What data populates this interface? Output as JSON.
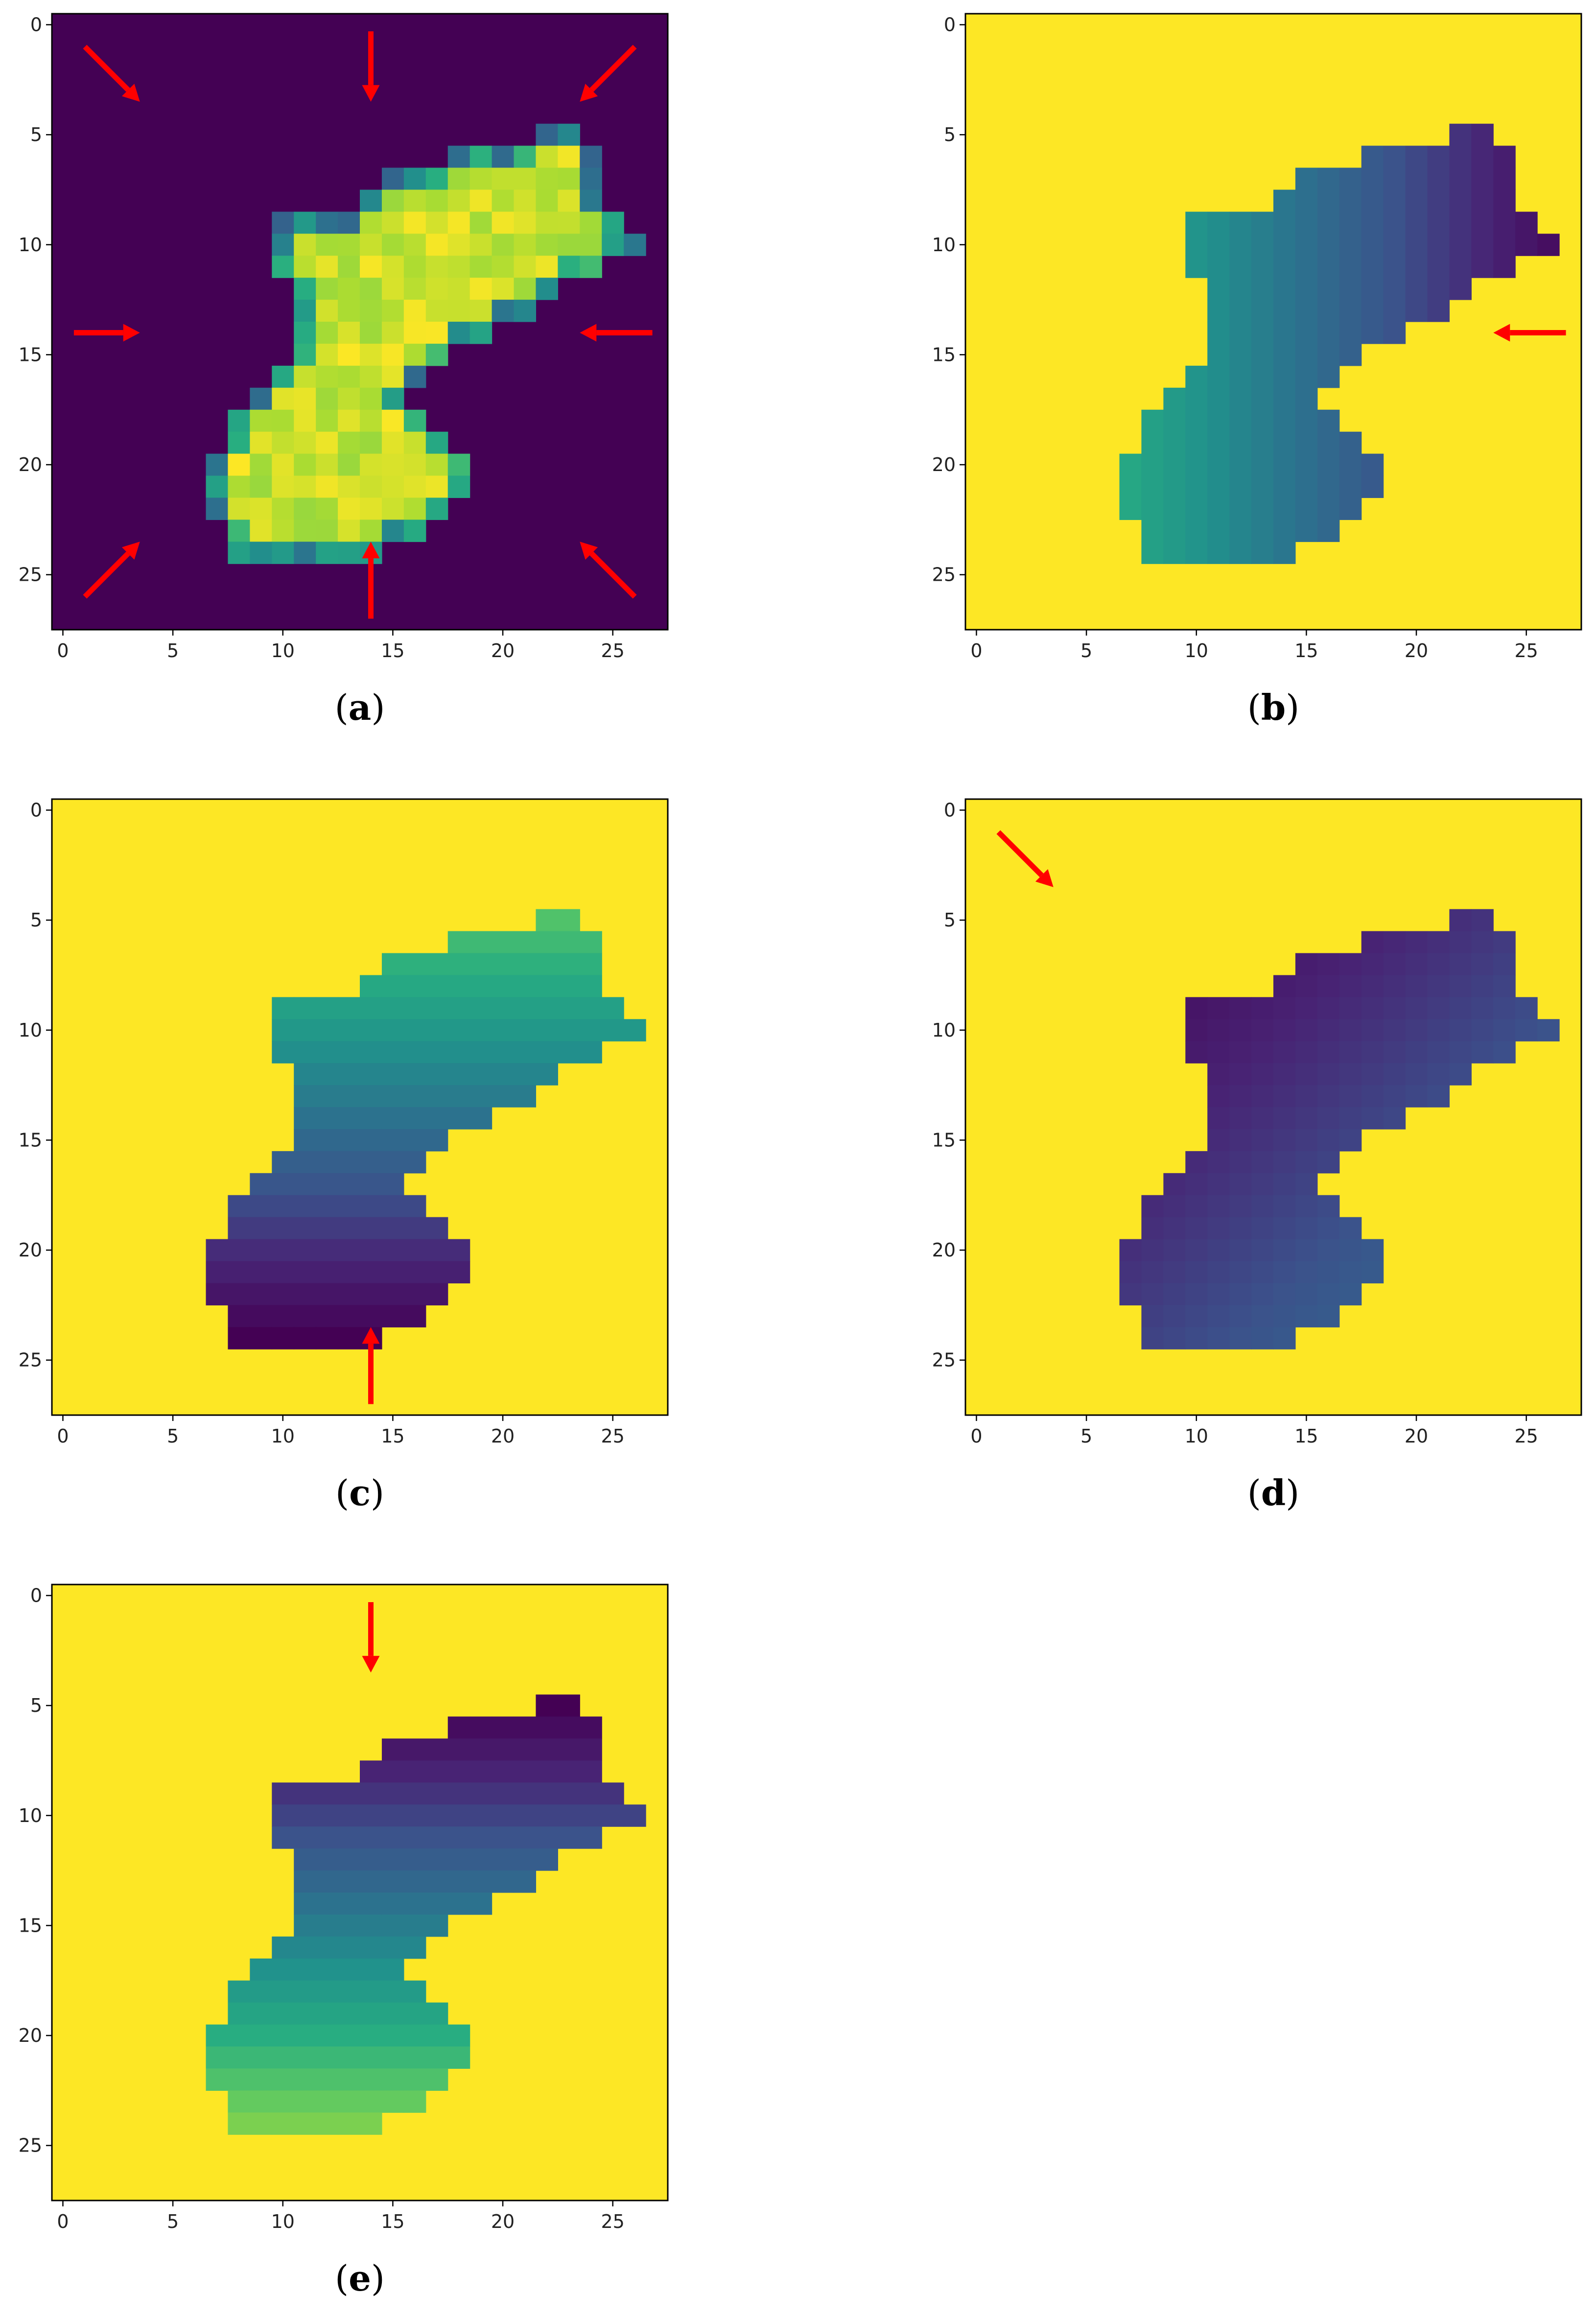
{
  "figure": {
    "panels_caption_labels": [
      "(a)",
      "(b)",
      "(c)",
      "(d)",
      "(e)"
    ]
  },
  "chart_data": [
    {
      "type": "heatmap",
      "caption": "a",
      "title": "",
      "xlabel": "",
      "ylabel": "",
      "xlim": [
        -0.5,
        27.5
      ],
      "ylim": [
        27.5,
        -0.5
      ],
      "xticks": [
        0,
        5,
        10,
        15,
        20,
        25
      ],
      "yticks": [
        0,
        5,
        10,
        15,
        20,
        25
      ],
      "grid": false,
      "colormap": "viridis",
      "background_value": 0.0,
      "shape_value_range": [
        0.3,
        1.0
      ],
      "arrows": [
        "top-left",
        "top",
        "top-right",
        "left",
        "right",
        "bottom-left",
        "bottom",
        "bottom-right"
      ]
    },
    {
      "type": "heatmap",
      "caption": "b",
      "title": "",
      "xlabel": "",
      "ylabel": "",
      "xlim": [
        -0.5,
        27.5
      ],
      "ylim": [
        27.5,
        -0.5
      ],
      "xticks": [
        0,
        5,
        10,
        15,
        20,
        25
      ],
      "yticks": [
        0,
        5,
        10,
        15,
        20,
        25
      ],
      "grid": false,
      "colormap": "viridis",
      "background_value": 1.0,
      "gradient": {
        "direction": "right",
        "from": 0.6,
        "to": 0.05
      },
      "arrows": [
        "right"
      ]
    },
    {
      "type": "heatmap",
      "caption": "c",
      "title": "",
      "xlabel": "",
      "ylabel": "",
      "xlim": [
        -0.5,
        27.5
      ],
      "ylim": [
        27.5,
        -0.5
      ],
      "xticks": [
        0,
        5,
        10,
        15,
        20,
        25
      ],
      "yticks": [
        0,
        5,
        10,
        15,
        20,
        25
      ],
      "grid": false,
      "colormap": "viridis",
      "background_value": 1.0,
      "gradient": {
        "direction": "bottom",
        "from": 0.72,
        "to": 0.0
      },
      "arrows": [
        "bottom"
      ]
    },
    {
      "type": "heatmap",
      "caption": "d",
      "title": "",
      "xlabel": "",
      "ylabel": "",
      "xlim": [
        -0.5,
        27.5
      ],
      "ylim": [
        27.5,
        -0.5
      ],
      "xticks": [
        0,
        5,
        10,
        15,
        20,
        25
      ],
      "yticks": [
        0,
        5,
        10,
        15,
        20,
        25
      ],
      "grid": false,
      "colormap": "viridis",
      "background_value": 1.0,
      "gradient": {
        "direction": "top-left",
        "from": 0.4,
        "to": 0.0
      },
      "arrows": [
        "top-left"
      ]
    },
    {
      "type": "heatmap",
      "caption": "e",
      "title": "",
      "xlabel": "",
      "ylabel": "",
      "xlim": [
        -0.5,
        27.5
      ],
      "ylim": [
        27.5,
        -0.5
      ],
      "xticks": [
        0,
        5,
        10,
        15,
        20,
        25
      ],
      "yticks": [
        0,
        5,
        10,
        15,
        20,
        25
      ],
      "grid": false,
      "colormap": "viridis",
      "background_value": 1.0,
      "gradient": {
        "direction": "top",
        "from": 0.8,
        "to": 0.0
      },
      "arrows": [
        "top"
      ]
    }
  ],
  "digit_mask_rows": [
    "............................",
    "............................",
    "............................",
    "............................",
    "............................",
    "......................##....",
    "..................#######...",
    "...............##########...",
    "..............###########...",
    "..........################..",
    "..........#################.",
    "..........###############...",
    "...........############.....",
    "...........###########......",
    "...........#########........",
    "...........#######..........",
    "..........#######...........",
    ".........#######............",
    "........#########...........",
    "........##########..........",
    ".......############.........",
    ".......############.........",
    ".......###########..........",
    "........#########...........",
    "........#######.............",
    "............................",
    "............................",
    "............................"
  ],
  "colors": {
    "viridis_min": "#440154",
    "viridis_max": "#fde725",
    "arrow": "#ff0000"
  }
}
